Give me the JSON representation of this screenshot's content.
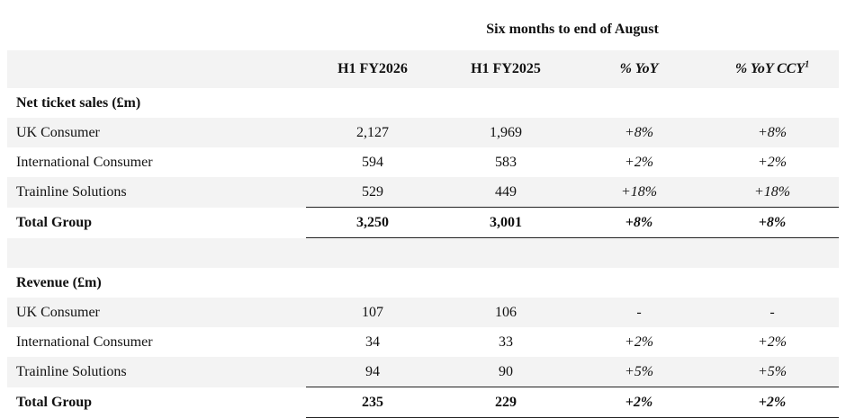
{
  "caption": "Six months to end of August",
  "headers": {
    "h1_fy2026": "H1 FY2026",
    "h1_fy2025": "H1 FY2025",
    "yoy": "% YoY",
    "yoy_ccy": "% YoY CCY",
    "yoy_ccy_footnote": "1"
  },
  "net_ticket_sales": {
    "title": "Net ticket sales (£m)",
    "rows": [
      {
        "label": "UK Consumer",
        "h1_fy2026": "2,127",
        "h1_fy2025": "1,969",
        "yoy": "+8%",
        "yoy_ccy": "+8%"
      },
      {
        "label": "International Consumer",
        "h1_fy2026": "594",
        "h1_fy2025": "583",
        "yoy": "+2%",
        "yoy_ccy": "+2%"
      },
      {
        "label": "Trainline Solutions",
        "h1_fy2026": "529",
        "h1_fy2025": "449",
        "yoy": "+18%",
        "yoy_ccy": "+18%"
      }
    ],
    "total": {
      "label": "Total Group",
      "h1_fy2026": "3,250",
      "h1_fy2025": "3,001",
      "yoy": "+8%",
      "yoy_ccy": "+8%"
    }
  },
  "revenue": {
    "title": "Revenue (£m)",
    "rows": [
      {
        "label": "UK Consumer",
        "h1_fy2026": "107",
        "h1_fy2025": "106",
        "yoy": "-",
        "yoy_ccy": "-"
      },
      {
        "label": "International Consumer",
        "h1_fy2026": "34",
        "h1_fy2025": "33",
        "yoy": "+2%",
        "yoy_ccy": "+2%"
      },
      {
        "label": "Trainline Solutions",
        "h1_fy2026": "94",
        "h1_fy2025": "90",
        "yoy": "+5%",
        "yoy_ccy": "+5%"
      }
    ],
    "total": {
      "label": "Total Group",
      "h1_fy2026": "235",
      "h1_fy2025": "229",
      "yoy": "+2%",
      "yoy_ccy": "+2%"
    }
  }
}
